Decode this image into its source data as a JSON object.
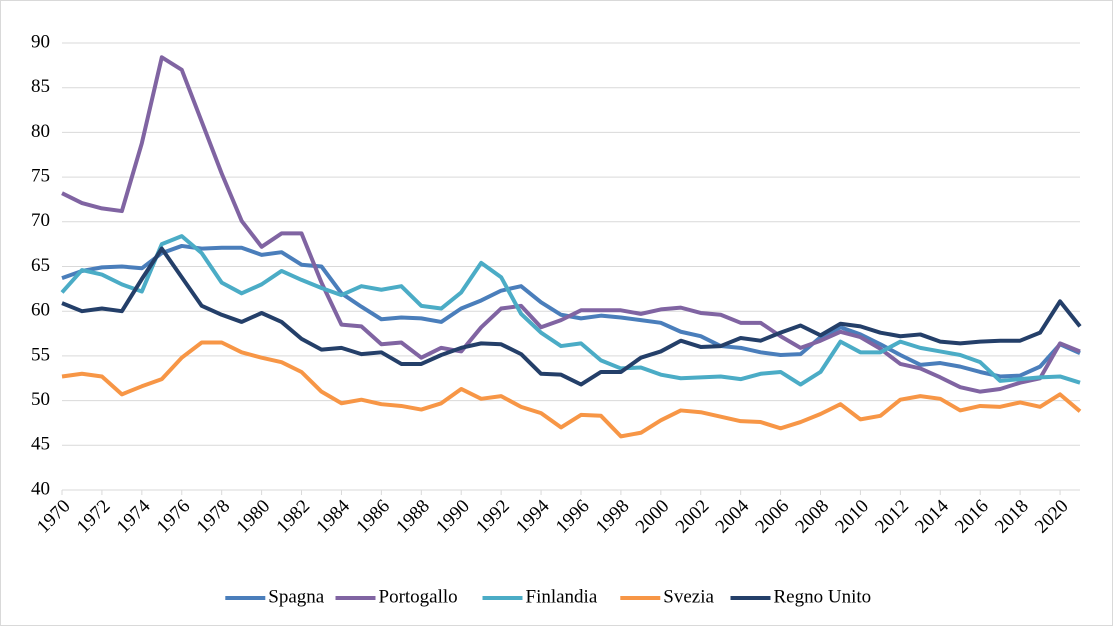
{
  "chart_data": {
    "type": "line",
    "x": [
      1970,
      1971,
      1972,
      1973,
      1974,
      1975,
      1976,
      1977,
      1978,
      1979,
      1980,
      1981,
      1982,
      1983,
      1984,
      1985,
      1986,
      1987,
      1988,
      1989,
      1990,
      1991,
      1992,
      1993,
      1994,
      1995,
      1996,
      1997,
      1998,
      1999,
      2000,
      2001,
      2002,
      2003,
      2004,
      2005,
      2006,
      2007,
      2008,
      2009,
      2010,
      2011,
      2012,
      2013,
      2014,
      2015,
      2016,
      2017,
      2018,
      2019,
      2020,
      2021
    ],
    "series": [
      {
        "name": "Spagna",
        "color": "#4a7ebb",
        "values": [
          63.7,
          64.5,
          64.9,
          65,
          64.8,
          66.5,
          67.3,
          67,
          67.1,
          67.1,
          66.3,
          66.6,
          65.2,
          65,
          62,
          60.5,
          59.1,
          59.3,
          59.2,
          58.8,
          60.3,
          61.2,
          62.3,
          62.8,
          61,
          59.6,
          59.2,
          59.5,
          59.3,
          59,
          58.7,
          57.7,
          57.2,
          56.1,
          55.9,
          55.4,
          55.1,
          55.2,
          57.1,
          58.2,
          57.4,
          56.3,
          55.1,
          54,
          54.2,
          53.8,
          53.2,
          52.7,
          52.8,
          53.8,
          56.3,
          55.3
        ]
      },
      {
        "name": "Portogallo",
        "color": "#8064a2",
        "values": [
          73.2,
          72.1,
          71.5,
          71.2,
          78.8,
          88.4,
          87,
          81.2,
          75.4,
          70.1,
          67.2,
          68.7,
          68.7,
          63.2,
          58.5,
          58.3,
          56.3,
          56.5,
          54.8,
          55.9,
          55.5,
          58.2,
          60.3,
          60.6,
          58.2,
          59,
          60.1,
          60.1,
          60.1,
          59.7,
          60.2,
          60.4,
          59.8,
          59.6,
          58.7,
          58.7,
          57.2,
          55.9,
          56.7,
          57.7,
          57.1,
          55.8,
          54.1,
          53.6,
          52.6,
          51.5,
          51,
          51.3,
          52,
          52.5,
          56.4,
          55.5
        ]
      },
      {
        "name": "Finlandia",
        "color": "#4bacc6",
        "values": [
          62.1,
          64.6,
          64.1,
          63,
          62.2,
          67.5,
          68.4,
          66.5,
          63.2,
          62,
          63,
          64.5,
          63.5,
          62.6,
          61.8,
          62.8,
          62.4,
          62.8,
          60.6,
          60.3,
          62.1,
          65.4,
          63.8,
          59.7,
          57.6,
          56.1,
          56.4,
          54.5,
          53.6,
          53.7,
          52.9,
          52.5,
          52.6,
          52.7,
          52.4,
          53,
          53.2,
          51.8,
          53.2,
          56.6,
          55.4,
          55.4,
          56.6,
          55.9,
          55.5,
          55.1,
          54.3,
          52.2,
          52.4,
          52.6,
          52.7,
          52
        ]
      },
      {
        "name": "Svezia",
        "color": "#f79646",
        "values": [
          52.7,
          53,
          52.7,
          50.7,
          51.6,
          52.4,
          54.8,
          56.5,
          56.5,
          55.4,
          54.8,
          54.3,
          53.2,
          51,
          49.7,
          50.1,
          49.6,
          49.4,
          49,
          49.7,
          51.3,
          50.2,
          50.5,
          49.3,
          48.6,
          47,
          48.4,
          48.3,
          46,
          46.4,
          47.8,
          48.9,
          48.7,
          48.2,
          47.7,
          47.6,
          46.9,
          47.6,
          48.5,
          49.6,
          47.9,
          48.3,
          50.1,
          50.5,
          50.2,
          48.9,
          49.4,
          49.3,
          49.8,
          49.3,
          50.7,
          48.8
        ]
      },
      {
        "name": "Regno Unito",
        "color": "#243f69",
        "values": [
          60.9,
          60,
          60.3,
          60,
          63.6,
          67,
          63.8,
          60.6,
          59.6,
          58.8,
          59.8,
          58.8,
          56.9,
          55.7,
          55.9,
          55.2,
          55.4,
          54.1,
          54.1,
          55.1,
          55.9,
          56.4,
          56.3,
          55.2,
          53,
          52.9,
          51.8,
          53.2,
          53.2,
          54.8,
          55.5,
          56.7,
          56,
          56.1,
          57,
          56.7,
          57.6,
          58.4,
          57.3,
          58.6,
          58.3,
          57.6,
          57.2,
          57.4,
          56.6,
          56.4,
          56.6,
          56.7,
          56.7,
          57.6,
          61.1,
          58.3
        ]
      }
    ],
    "xlim": [
      1970,
      2021
    ],
    "xticks": [
      1970,
      1972,
      1974,
      1976,
      1978,
      1980,
      1982,
      1984,
      1986,
      1988,
      1990,
      1992,
      1994,
      1996,
      1998,
      2000,
      2002,
      2004,
      2006,
      2008,
      2010,
      2012,
      2014,
      2016,
      2018,
      2020
    ],
    "ylim": [
      40,
      90
    ],
    "yticks": [
      40,
      45,
      50,
      55,
      60,
      65,
      70,
      75,
      80,
      85,
      90
    ],
    "grid": true,
    "legend": "bottom"
  }
}
